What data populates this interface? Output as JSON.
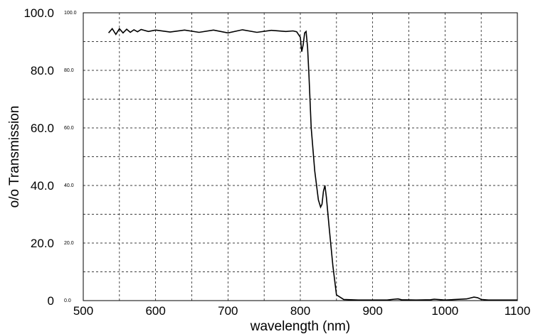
{
  "chart_data": {
    "type": "line",
    "title": "",
    "xlabel": "wavelength (nm)",
    "ylabel": "o/o Transmission",
    "xlim": [
      500,
      1100
    ],
    "ylim": [
      0,
      100
    ],
    "x_ticks": [
      "500",
      "600",
      "700",
      "800",
      "900",
      "1000",
      "1100"
    ],
    "y_ticks": [
      "0",
      "20.0",
      "40.0",
      "60.0",
      "80.0",
      "100.0"
    ],
    "y_ticks_inner": [
      "0.0",
      "20.0",
      "40.0",
      "60.0",
      "80.0",
      "100.0"
    ],
    "grid": true,
    "legend": "none",
    "line_color": "#000000",
    "series": [
      {
        "x": [
          535,
          540,
          545,
          550,
          555,
          560,
          565,
          570,
          575,
          580,
          590,
          600,
          620,
          640,
          660,
          680,
          700,
          720,
          740,
          760,
          780,
          790,
          795,
          800,
          802,
          804,
          806,
          808,
          810,
          812,
          815,
          820,
          825,
          828,
          830,
          832,
          834,
          836,
          840,
          845,
          850,
          860,
          880,
          900,
          920,
          930,
          935,
          940,
          960,
          980,
          985,
          1000,
          1030,
          1040,
          1045,
          1050,
          1060,
          1080,
          1100
        ],
        "y": [
          93,
          94.5,
          92.5,
          94.5,
          93,
          94.3,
          93.2,
          94.1,
          93.4,
          94.2,
          93.5,
          94,
          93.3,
          94,
          93.2,
          94,
          93,
          94.1,
          93.2,
          93.9,
          93.5,
          93.7,
          93.4,
          91.5,
          86.5,
          89,
          93,
          93.5,
          88,
          78,
          60,
          45,
          35,
          32.5,
          33.5,
          38,
          40,
          36,
          25,
          12,
          2,
          0.4,
          0.2,
          0.2,
          0.2,
          0.5,
          0.6,
          0.3,
          0.2,
          0.3,
          0.5,
          0.2,
          0.6,
          1.2,
          1.0,
          0.4,
          0.2,
          0.2,
          0.2
        ]
      }
    ]
  }
}
